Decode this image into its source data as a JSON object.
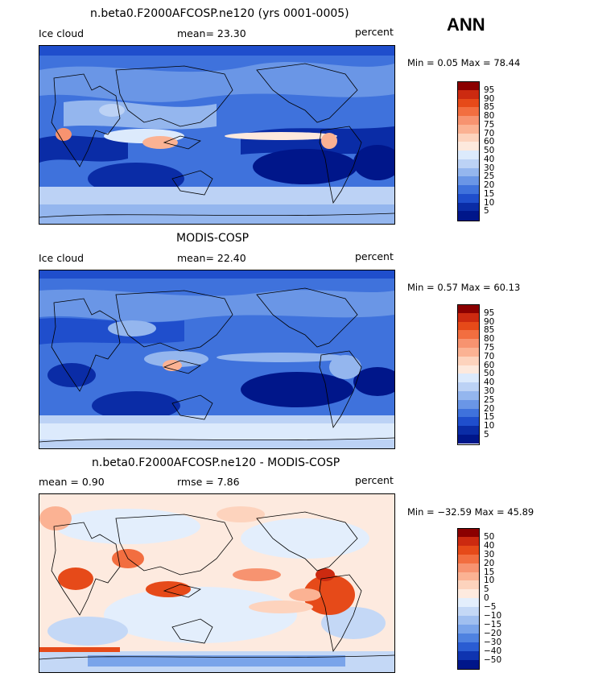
{
  "season": "ANN",
  "panels": [
    {
      "title": "n.beta0.F2000AFCOSP.ne120 (yrs 0001-0005)",
      "left_label": "Ice cloud",
      "center_label": "mean=   23.30",
      "right_label": "percent",
      "minmax": "Min =    0.05  Max =   78.44",
      "colorbar": {
        "ticks": [
          "95",
          "90",
          "85",
          "80",
          "75",
          "70",
          "60",
          "50",
          "40",
          "30",
          "25",
          "20",
          "15",
          "10",
          "5"
        ],
        "colors": [
          "#8b0000",
          "#cc2a10",
          "#e64a19",
          "#f26e40",
          "#f79370",
          "#fbb293",
          "#fdd3bd",
          "#fde9dd",
          "#dceafc",
          "#bcd2f5",
          "#94b6ee",
          "#6a96e6",
          "#3f72dc",
          "#1f4ecc",
          "#0a2ca6",
          "#00168a"
        ]
      }
    },
    {
      "title": "MODIS-COSP",
      "left_label": "Ice cloud",
      "center_label": "mean=   22.40",
      "right_label": "percent",
      "minmax": "Min =    0.57  Max =   60.13",
      "colorbar": {
        "ticks": [
          "95",
          "90",
          "85",
          "80",
          "75",
          "70",
          "60",
          "50",
          "40",
          "30",
          "25",
          "20",
          "15",
          "10",
          "5"
        ],
        "colors": [
          "#8b0000",
          "#cc2a10",
          "#e64a19",
          "#f26e40",
          "#f79370",
          "#fbb293",
          "#fdd3bd",
          "#fde9dd",
          "#dceafc",
          "#bcd2f5",
          "#94b6ee",
          "#6a96e6",
          "#3f72dc",
          "#1f4ecc",
          "#0a2ca6",
          "#00168a"
        ]
      }
    },
    {
      "title": "n.beta0.F2000AFCOSP.ne120 - MODIS-COSP",
      "left_label": "mean =     0.90",
      "center_label": "rmse =     7.86",
      "right_label": "percent",
      "minmax": "Min =  −32.59  Max =   45.89",
      "colorbar": {
        "ticks": [
          "50",
          "40",
          "30",
          "20",
          "15",
          "10",
          "5",
          "0",
          "−5",
          "−10",
          "−15",
          "−20",
          "−30",
          "−40",
          "−50"
        ],
        "colors": [
          "#8b0000",
          "#cc2a10",
          "#e64a19",
          "#f26e40",
          "#f79370",
          "#fbb293",
          "#fdd3bd",
          "#fdeadf",
          "#e3eefc",
          "#c4d8f6",
          "#a0bff0",
          "#7aa4ea",
          "#4f82e0",
          "#2a5cd2",
          "#0f34b0",
          "#00168a"
        ]
      }
    }
  ]
}
